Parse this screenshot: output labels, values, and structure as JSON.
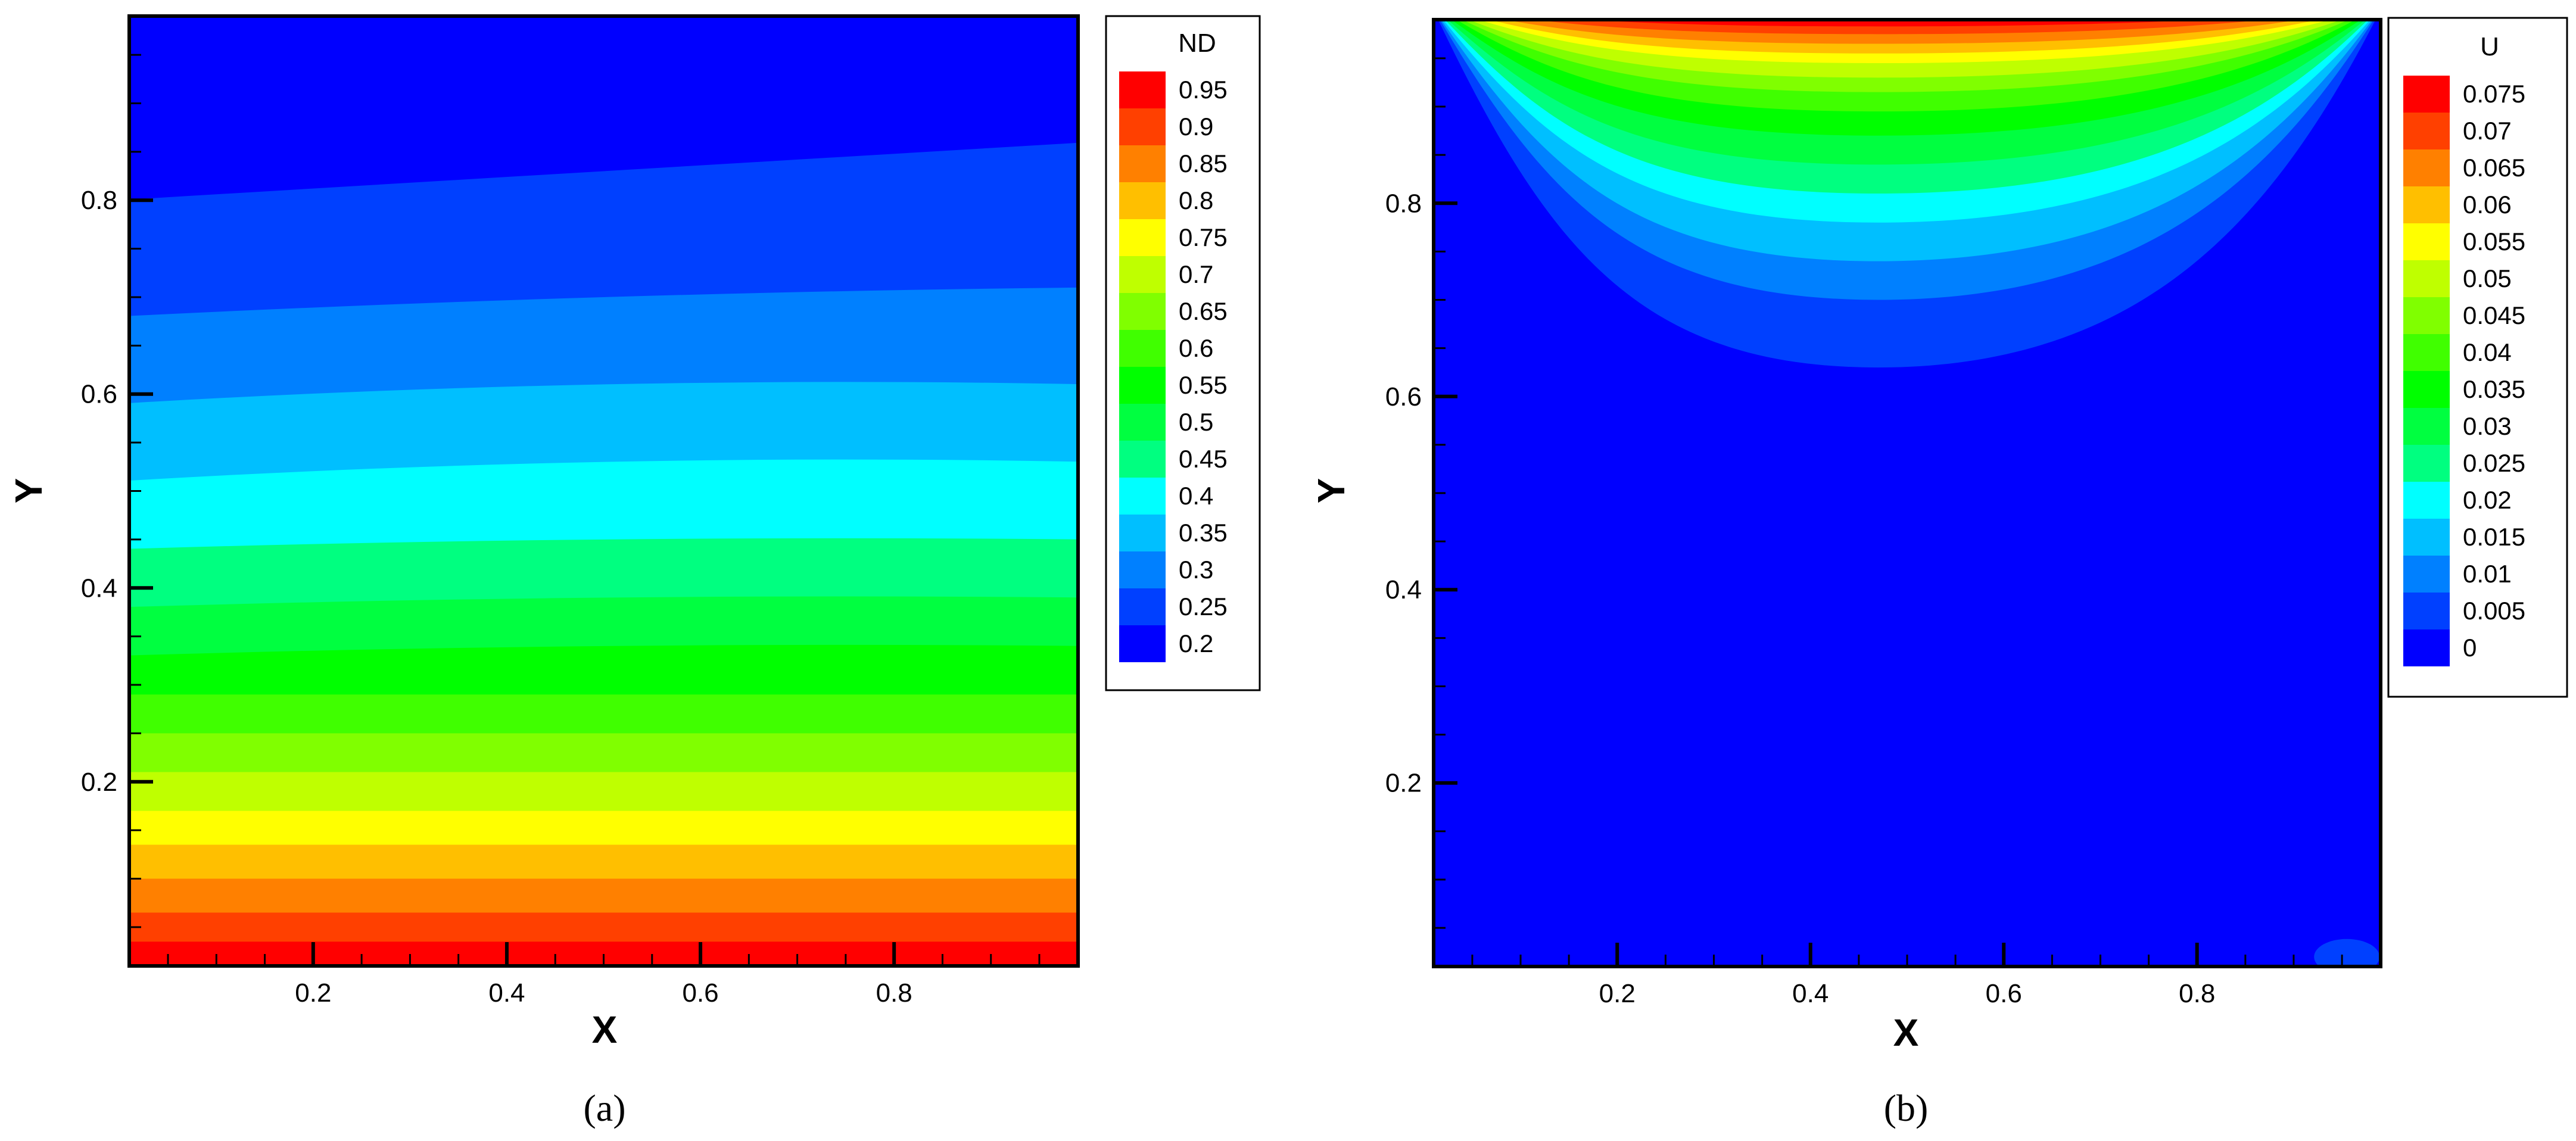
{
  "palette": [
    "#0000ff",
    "#0040ff",
    "#0080ff",
    "#00bfff",
    "#00ffff",
    "#00ff80",
    "#00ff40",
    "#00ff00",
    "#40ff00",
    "#80ff00",
    "#bfff00",
    "#ffff00",
    "#ffbf00",
    "#ff8000",
    "#ff4000",
    "#ff0000"
  ],
  "chart_data": [
    {
      "type": "heatmap",
      "panel_label": "(a)",
      "variable": "ND",
      "xlabel": "X",
      "ylabel": "Y",
      "xlim": [
        0.01,
        0.99
      ],
      "ylim": [
        0.01,
        0.99
      ],
      "x_ticks": [
        0.2,
        0.4,
        0.6,
        0.8
      ],
      "y_ticks": [
        0.2,
        0.4,
        0.6,
        0.8
      ],
      "x_tick_labels": [
        "0.2",
        "0.4",
        "0.6",
        "0.8"
      ],
      "y_tick_labels": [
        "0.2",
        "0.4",
        "0.6",
        "0.8"
      ],
      "legend_levels": [
        "0.95",
        "0.9",
        "0.85",
        "0.8",
        "0.75",
        "0.7",
        "0.65",
        "0.6",
        "0.55",
        "0.5",
        "0.45",
        "0.4",
        "0.35",
        "0.3",
        "0.25",
        "0.2"
      ],
      "legend_placement": "right",
      "contour_levels": [
        0.2,
        0.25,
        0.3,
        0.35,
        0.4,
        0.45,
        0.5,
        0.55,
        0.6,
        0.65,
        0.7,
        0.75,
        0.8,
        0.85,
        0.9,
        0.95
      ],
      "contours": [
        {
          "level": 0.25,
          "y_at_x": [
            [
              0.01,
              0.8
            ],
            [
              0.5,
              0.83
            ],
            [
              0.99,
              0.86
            ]
          ]
        },
        {
          "level": 0.3,
          "y_at_x": [
            [
              0.01,
              0.68
            ],
            [
              0.5,
              0.7
            ],
            [
              0.99,
              0.71
            ]
          ]
        },
        {
          "level": 0.35,
          "y_at_x": [
            [
              0.01,
              0.59
            ],
            [
              0.5,
              0.61
            ],
            [
              0.99,
              0.61
            ]
          ]
        },
        {
          "level": 0.4,
          "y_at_x": [
            [
              0.01,
              0.51
            ],
            [
              0.5,
              0.53
            ],
            [
              0.99,
              0.53
            ]
          ]
        },
        {
          "level": 0.45,
          "y_at_x": [
            [
              0.01,
              0.44
            ],
            [
              0.5,
              0.45
            ],
            [
              0.99,
              0.45
            ]
          ]
        },
        {
          "level": 0.5,
          "y_at_x": [
            [
              0.01,
              0.38
            ],
            [
              0.5,
              0.39
            ],
            [
              0.99,
              0.39
            ]
          ]
        },
        {
          "level": 0.55,
          "y_at_x": [
            [
              0.01,
              0.33
            ],
            [
              0.5,
              0.34
            ],
            [
              0.99,
              0.34
            ]
          ]
        },
        {
          "level": 0.6,
          "y_at_x": [
            [
              0.01,
              0.29
            ],
            [
              0.5,
              0.29
            ],
            [
              0.99,
              0.29
            ]
          ]
        },
        {
          "level": 0.65,
          "y_at_x": [
            [
              0.01,
              0.25
            ],
            [
              0.5,
              0.25
            ],
            [
              0.99,
              0.25
            ]
          ]
        },
        {
          "level": 0.7,
          "y_at_x": [
            [
              0.01,
              0.21
            ],
            [
              0.5,
              0.21
            ],
            [
              0.99,
              0.21
            ]
          ]
        },
        {
          "level": 0.75,
          "y_at_x": [
            [
              0.01,
              0.17
            ],
            [
              0.5,
              0.17
            ],
            [
              0.99,
              0.17
            ]
          ]
        },
        {
          "level": 0.8,
          "y_at_x": [
            [
              0.01,
              0.135
            ],
            [
              0.5,
              0.135
            ],
            [
              0.99,
              0.135
            ]
          ]
        },
        {
          "level": 0.85,
          "y_at_x": [
            [
              0.01,
              0.1
            ],
            [
              0.5,
              0.1
            ],
            [
              0.99,
              0.1
            ]
          ]
        },
        {
          "level": 0.9,
          "y_at_x": [
            [
              0.01,
              0.065
            ],
            [
              0.5,
              0.065
            ],
            [
              0.99,
              0.065
            ]
          ]
        },
        {
          "level": 0.95,
          "y_at_x": [
            [
              0.01,
              0.035
            ],
            [
              0.5,
              0.035
            ],
            [
              0.99,
              0.035
            ]
          ]
        }
      ],
      "fill_top_level": 0.2,
      "fill_bottom_level": 0.95
    },
    {
      "type": "heatmap",
      "panel_label": "(b)",
      "variable": "U",
      "xlabel": "X",
      "ylabel": "Y",
      "xlim": [
        0.01,
        0.99
      ],
      "ylim": [
        0.01,
        0.99
      ],
      "x_ticks": [
        0.2,
        0.4,
        0.6,
        0.8
      ],
      "y_ticks": [
        0.2,
        0.4,
        0.6,
        0.8
      ],
      "x_tick_labels": [
        "0.2",
        "0.4",
        "0.6",
        "0.8"
      ],
      "y_tick_labels": [
        "0.2",
        "0.4",
        "0.6",
        "0.8"
      ],
      "legend_levels": [
        "0.075",
        "0.07",
        "0.065",
        "0.06",
        "0.055",
        "0.05",
        "0.045",
        "0.04",
        "0.035",
        "0.03",
        "0.025",
        "0.02",
        "0.015",
        "0.01",
        "0.005",
        "0"
      ],
      "legend_placement": "right",
      "contour_levels": [
        0,
        0.005,
        0.01,
        0.015,
        0.02,
        0.025,
        0.03,
        0.035,
        0.04,
        0.045,
        0.05,
        0.055,
        0.06,
        0.065,
        0.07,
        0.075
      ],
      "contours": [
        {
          "level": 0.005,
          "min_y": 0.63
        },
        {
          "level": 0.01,
          "min_y": 0.7
        },
        {
          "level": 0.015,
          "min_y": 0.74
        },
        {
          "level": 0.02,
          "min_y": 0.78
        },
        {
          "level": 0.025,
          "min_y": 0.81
        },
        {
          "level": 0.03,
          "min_y": 0.84
        },
        {
          "level": 0.035,
          "min_y": 0.87
        },
        {
          "level": 0.04,
          "min_y": 0.895
        },
        {
          "level": 0.045,
          "min_y": 0.915
        },
        {
          "level": 0.05,
          "min_y": 0.93
        },
        {
          "level": 0.055,
          "min_y": 0.945
        },
        {
          "level": 0.06,
          "min_y": 0.955
        },
        {
          "level": 0.065,
          "min_y": 0.965
        },
        {
          "level": 0.07,
          "min_y": 0.975
        },
        {
          "level": 0.075,
          "min_y": 0.983
        }
      ],
      "contour_center_x": 0.47
    }
  ]
}
